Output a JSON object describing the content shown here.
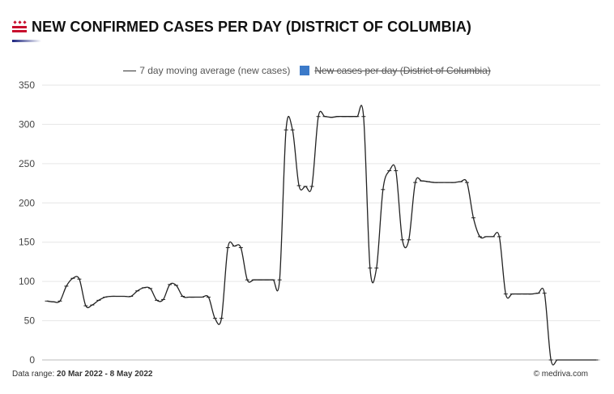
{
  "header": {
    "title": "NEW CONFIRMED CASES PER DAY (DISTRICT OF COLUMBIA)"
  },
  "footer": {
    "range_label": "Data range:",
    "range_start": "20 Mar 2022",
    "range_sep": "-",
    "range_end": "8 May 2022",
    "copyright_symbol": "©",
    "credit": "medriva.com"
  },
  "colors": {
    "line": "#222222",
    "bar_series": "#3c7ac9",
    "grid": "#e6e6e6",
    "accent": "#1a237e"
  },
  "chart_data": {
    "type": "line",
    "title": "NEW CONFIRMED CASES PER DAY (DISTRICT OF COLUMBIA)",
    "xlabel": "",
    "ylabel": "",
    "ylim": [
      0,
      350
    ],
    "yticks": [
      0,
      50,
      100,
      150,
      200,
      250,
      300,
      350
    ],
    "grid": true,
    "legend_position": "top-center",
    "x_range": [
      "20 Mar 2022",
      "8 May 2022"
    ],
    "series": [
      {
        "name": "7 day moving average (new cases)",
        "visible": true,
        "values": [
          75,
          74,
          75,
          94,
          104,
          103,
          69,
          70,
          76,
          80,
          81,
          81,
          81,
          81,
          88,
          92,
          91,
          76,
          77,
          96,
          95,
          81,
          80,
          80,
          80,
          80,
          53,
          53,
          143,
          145,
          143,
          102,
          102,
          102,
          102,
          102,
          102,
          293,
          293,
          222,
          221,
          221,
          310,
          310,
          309,
          310,
          310,
          310,
          310,
          310,
          117,
          117,
          217,
          241,
          241,
          153,
          153,
          226,
          228,
          227,
          226,
          226,
          226,
          226,
          227,
          226,
          181,
          157,
          157,
          157,
          157,
          84,
          84,
          84,
          84,
          84,
          85,
          85,
          0,
          0,
          0,
          0,
          0,
          0,
          0,
          0
        ]
      },
      {
        "name": "New cases per day (District of Columbia)",
        "visible": false,
        "values": []
      }
    ]
  }
}
